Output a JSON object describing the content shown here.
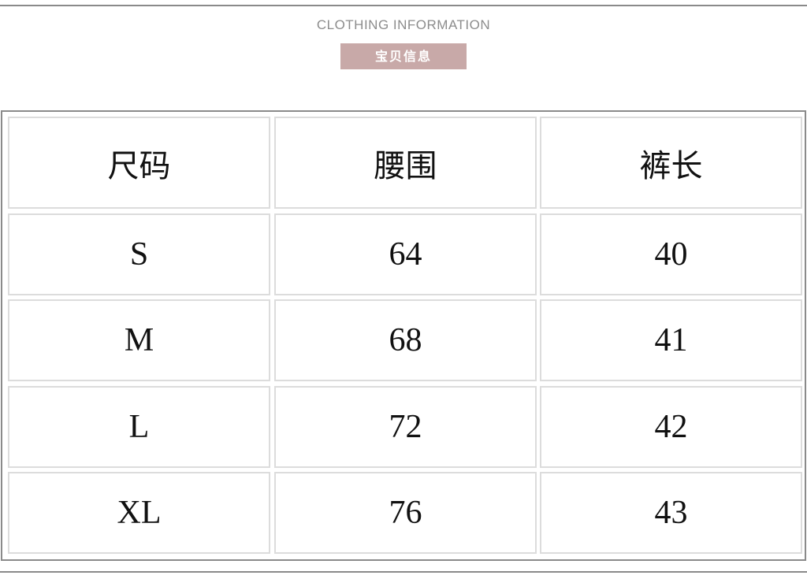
{
  "header": {
    "title": "CLOTHING INFORMATION",
    "badge": "宝贝信息",
    "badge_color": "#c8a9a8"
  },
  "table": {
    "columns": [
      "尺码",
      "腰围",
      "裤长"
    ],
    "rows": [
      [
        "S",
        "64",
        "40"
      ],
      [
        "M",
        "68",
        "41"
      ],
      [
        "L",
        "72",
        "42"
      ],
      [
        "XL",
        "76",
        "43"
      ]
    ]
  }
}
